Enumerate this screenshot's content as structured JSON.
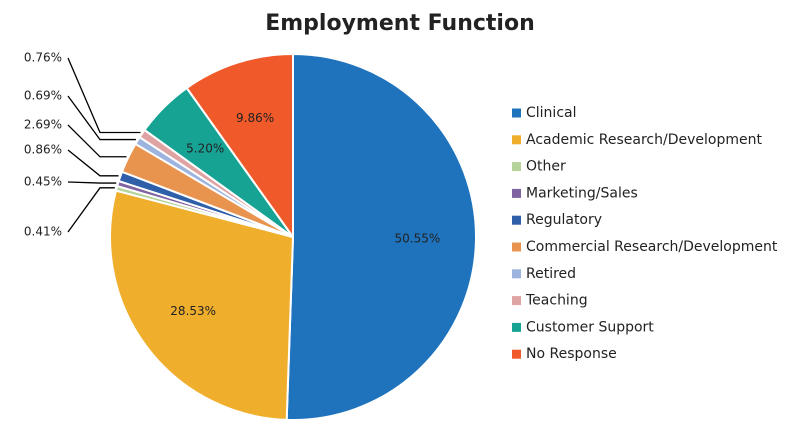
{
  "chart_data": {
    "type": "pie",
    "title": "Employment Function",
    "categories": [
      "Clinical",
      "Academic Research/Development",
      "Other",
      "Marketing/Sales",
      "Regulatory",
      "Commercial Research/Development",
      "Retired",
      "Teaching",
      "Customer Support",
      "No Response"
    ],
    "values": [
      50.55,
      28.53,
      0.41,
      0.45,
      0.86,
      2.69,
      0.69,
      0.76,
      5.2,
      9.86
    ],
    "value_labels": [
      "50.55%",
      "28.53%",
      "0.41%",
      "0.45%",
      "0.86%",
      "2.69%",
      "0.69%",
      "0.76%",
      "5.20%",
      "9.86%"
    ],
    "colors": [
      "#1f73bd",
      "#f0ae2d",
      "#b5d39a",
      "#8064a2",
      "#2e5fa8",
      "#e8944f",
      "#9db5de",
      "#e0a3a3",
      "#17a394",
      "#f05a2a"
    ],
    "legend": "right"
  }
}
